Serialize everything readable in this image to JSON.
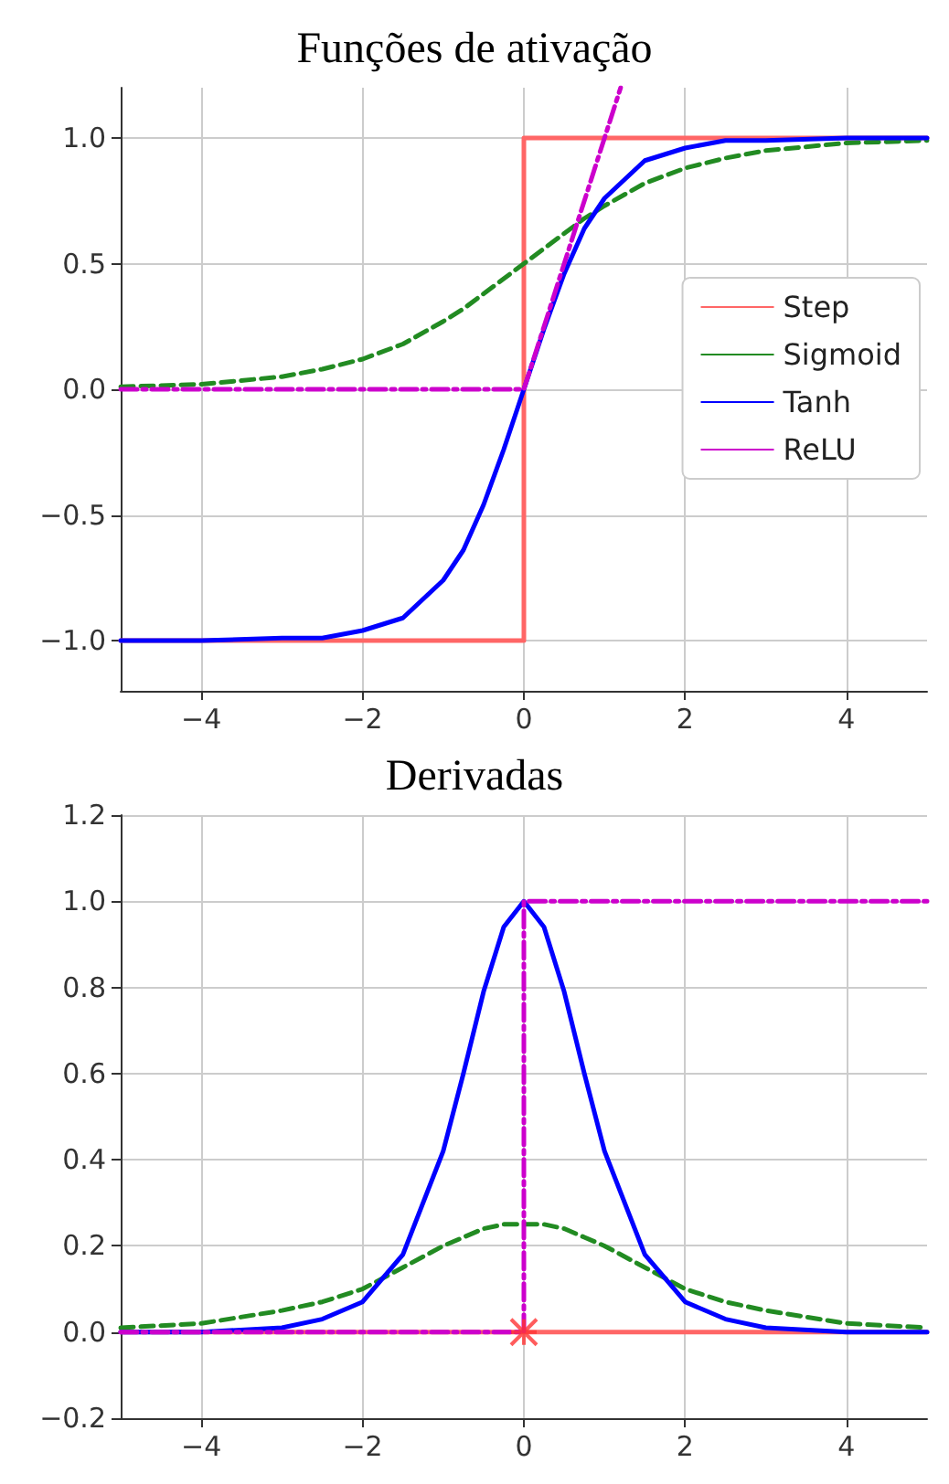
{
  "chart_data": [
    {
      "type": "line",
      "title": "Funções de ativação",
      "xlim": [
        -5,
        5
      ],
      "ylim": [
        -1.2,
        1.2
      ],
      "xticks": [
        -4,
        -2,
        0,
        2,
        4
      ],
      "yticks": [
        {
          "value": -1,
          "label": "−1.0"
        },
        {
          "value": -0.5,
          "label": "−0.5"
        },
        {
          "value": 0,
          "label": "0.0"
        },
        {
          "value": 0.5,
          "label": "0.5"
        },
        {
          "value": 1,
          "label": "1.0"
        }
      ],
      "grid": true,
      "legend": "right",
      "marker": "none",
      "series": [
        {
          "name": "Step",
          "color": "#ff6666",
          "line_style": "solid",
          "x": [
            -5,
            0,
            0,
            5
          ],
          "values": [
            -1,
            -1,
            1,
            1
          ]
        },
        {
          "name": "Sigmoid",
          "color": "#228b22",
          "line_style": "dashed",
          "x": [
            -5,
            -4,
            -3,
            -2.5,
            -2,
            -1.5,
            -1,
            -0.75,
            -0.5,
            -0.25,
            0,
            0.25,
            0.5,
            0.75,
            1,
            1.5,
            2,
            2.5,
            3,
            4,
            5
          ],
          "values": [
            0.01,
            0.02,
            0.05,
            0.08,
            0.12,
            0.18,
            0.27,
            0.32,
            0.38,
            0.44,
            0.5,
            0.56,
            0.62,
            0.68,
            0.73,
            0.82,
            0.88,
            0.92,
            0.95,
            0.98,
            0.99
          ]
        },
        {
          "name": "Tanh",
          "color": "#0000ff",
          "line_style": "solid",
          "x": [
            -5,
            -4,
            -3,
            -2.5,
            -2,
            -1.5,
            -1,
            -0.75,
            -0.5,
            -0.25,
            0,
            0.25,
            0.5,
            0.75,
            1,
            1.5,
            2,
            2.5,
            3,
            4,
            5
          ],
          "values": [
            -1,
            -1,
            -0.99,
            -0.99,
            -0.96,
            -0.91,
            -0.76,
            -0.64,
            -0.46,
            -0.24,
            0,
            0.24,
            0.46,
            0.64,
            0.76,
            0.91,
            0.96,
            0.99,
            0.99,
            1,
            1
          ]
        },
        {
          "name": "ReLU",
          "color": "#cc00cc",
          "line_style": "dotted",
          "x": [
            -5,
            0,
            1.2
          ],
          "values": [
            0,
            0,
            1.2
          ]
        }
      ]
    },
    {
      "type": "line",
      "title": "Derivadas",
      "xlim": [
        -5,
        5
      ],
      "ylim": [
        -0.2,
        1.2
      ],
      "xticks": [
        -4,
        -2,
        0,
        2,
        4
      ],
      "yticks": [
        {
          "value": -0.2,
          "label": "−0.2"
        },
        {
          "value": 0,
          "label": "0.0"
        },
        {
          "value": 0.2,
          "label": "0.2"
        },
        {
          "value": 0.4,
          "label": "0.4"
        },
        {
          "value": 0.6,
          "label": "0.6"
        },
        {
          "value": 0.8,
          "label": "0.8"
        },
        {
          "value": 1,
          "label": "1.0"
        },
        {
          "value": 1.2,
          "label": "1.2"
        }
      ],
      "grid": true,
      "marker": "none",
      "series": [
        {
          "color": "#ff6666",
          "line_style": "solid",
          "x": [
            -5,
            5
          ],
          "values": [
            0,
            0
          ]
        },
        {
          "type": "scatter",
          "color": "#ff3333",
          "marker": "cross",
          "x": [
            0
          ],
          "values": [
            0
          ]
        },
        {
          "color": "#228b22",
          "line_style": "dashed",
          "x": [
            -5,
            -4,
            -3,
            -2.5,
            -2,
            -1.5,
            -1,
            -0.75,
            -0.5,
            -0.25,
            0,
            0.25,
            0.5,
            0.75,
            1,
            1.5,
            2,
            2.5,
            3,
            4,
            5
          ],
          "values": [
            0.01,
            0.02,
            0.05,
            0.07,
            0.1,
            0.15,
            0.2,
            0.22,
            0.24,
            0.25,
            0.25,
            0.25,
            0.24,
            0.22,
            0.2,
            0.15,
            0.1,
            0.07,
            0.05,
            0.02,
            0.01
          ]
        },
        {
          "color": "#0000ff",
          "line_style": "solid",
          "x": [
            -5,
            -4,
            -3,
            -2.5,
            -2,
            -1.5,
            -1,
            -0.75,
            -0.5,
            -0.25,
            0,
            0.25,
            0.5,
            0.75,
            1,
            1.5,
            2,
            2.5,
            3,
            4,
            5
          ],
          "values": [
            0,
            0,
            0.01,
            0.03,
            0.07,
            0.18,
            0.42,
            0.6,
            0.79,
            0.94,
            1,
            0.94,
            0.79,
            0.6,
            0.42,
            0.18,
            0.07,
            0.03,
            0.01,
            0,
            0
          ]
        },
        {
          "color": "#cc00cc",
          "line_style": "dotted",
          "x": [
            -5,
            0,
            0,
            5
          ],
          "values": [
            0,
            0,
            1,
            1
          ]
        }
      ]
    }
  ]
}
